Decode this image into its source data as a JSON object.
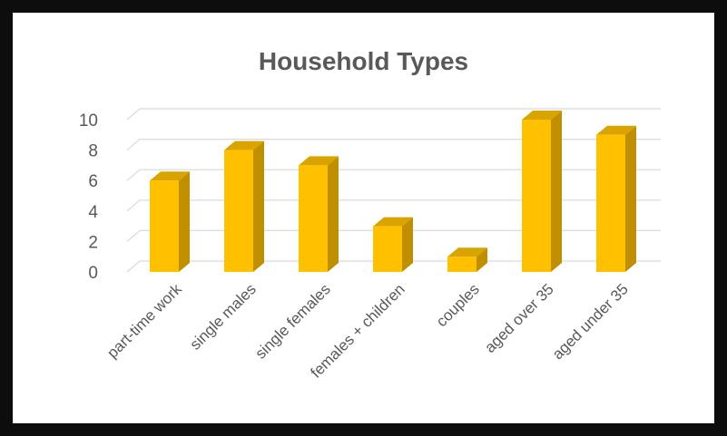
{
  "chart_data": {
    "type": "bar",
    "style": "3d-column",
    "title": "Household Types",
    "categories": [
      "part-time work",
      "single males",
      "single females",
      "females + children",
      "couples",
      "aged over 35",
      "aged under 35"
    ],
    "values": [
      6,
      8,
      7,
      3,
      1,
      10,
      9
    ],
    "y_ticks": [
      0,
      2,
      4,
      6,
      8,
      10
    ],
    "ylim": [
      0,
      10
    ],
    "xlabel": "",
    "ylabel": "",
    "grid": true,
    "legend": "none",
    "colors": {
      "bar_front": "#ffc000",
      "bar_top": "#d9a300",
      "bar_side": "#bf8f00",
      "gridline": "#d9d9d9",
      "text": "#595959"
    }
  }
}
